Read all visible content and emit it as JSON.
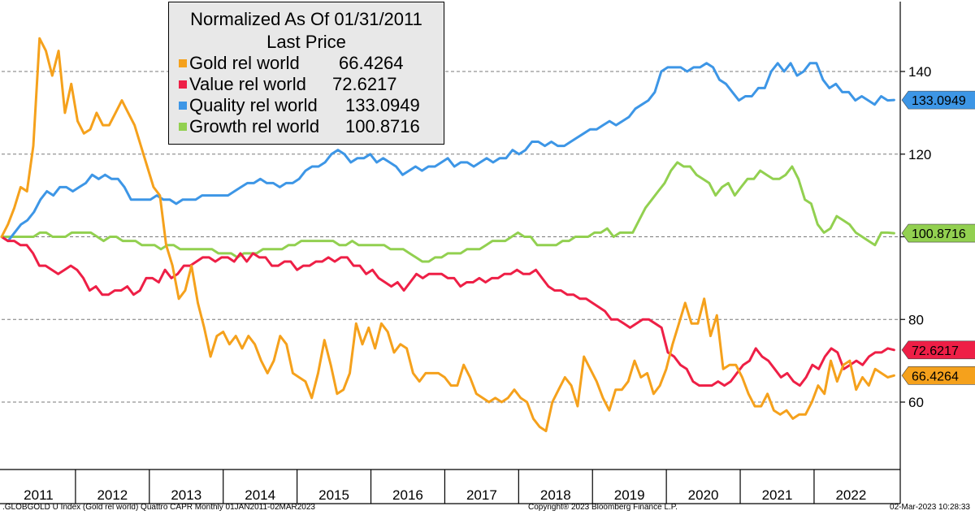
{
  "chart_data": {
    "type": "line",
    "legend": {
      "title_line1": "Normalized As Of 01/31/2011",
      "title_line2": "Last Price",
      "placement": "top-left"
    },
    "y_ticks": [
      60,
      80,
      120,
      140
    ],
    "x_labels": [
      "2011",
      "2012",
      "2013",
      "2014",
      "2015",
      "2016",
      "2017",
      "2018",
      "2019",
      "2020",
      "2021",
      "2022"
    ],
    "x_range": [
      "2011-01",
      "2023-03"
    ],
    "y_range": [
      45,
      158
    ],
    "grid": true,
    "series": [
      {
        "name": "Gold rel world",
        "last_label": "66.4264",
        "color": "#f5a11c",
        "start": "2011-01",
        "values": [
          100,
          103,
          107,
          112,
          111,
          122,
          148,
          145,
          139,
          145,
          130,
          137,
          128,
          125,
          126,
          130,
          127,
          127,
          130,
          133,
          130,
          127,
          122,
          117,
          112,
          110,
          98,
          93,
          85,
          87,
          93,
          84,
          78,
          71,
          76,
          77,
          74,
          76,
          73,
          76,
          74,
          70,
          67,
          70,
          76,
          74,
          67,
          66,
          65,
          61,
          67,
          75,
          69,
          62,
          63,
          67,
          79,
          74,
          78,
          73,
          79,
          77,
          72,
          74,
          73,
          67,
          65,
          67,
          67,
          67,
          66,
          64,
          64,
          69,
          66,
          62,
          61,
          60,
          61,
          60,
          61,
          63,
          61,
          60,
          56,
          54,
          53,
          60,
          63,
          66,
          64,
          59,
          71,
          68,
          65,
          61,
          58,
          63,
          63,
          65,
          70,
          66,
          67,
          62,
          64,
          68,
          74,
          79,
          84,
          79,
          79,
          85,
          76,
          81,
          68,
          69,
          69,
          66,
          62,
          59,
          59,
          62,
          58,
          57,
          58,
          56,
          57,
          57,
          60,
          64,
          62,
          70,
          65,
          69,
          70,
          63,
          66,
          64,
          68,
          67,
          66,
          66.4264
        ]
      },
      {
        "name": "Value rel world",
        "last_label": "72.6217",
        "color": "#ee1f46",
        "start": "2011-01",
        "values": [
          100,
          99,
          99,
          98,
          98,
          96,
          93,
          93,
          92,
          91,
          92,
          93,
          92,
          90,
          87,
          88,
          86,
          86,
          87,
          87,
          88,
          86,
          87,
          90,
          90,
          89,
          92,
          90,
          91,
          93,
          93,
          94,
          95,
          95,
          94,
          95,
          95,
          94,
          96,
          94,
          96,
          95,
          95,
          93,
          93,
          94,
          94,
          92,
          93,
          93,
          94,
          94,
          95,
          94,
          95,
          95,
          93,
          93,
          91,
          92,
          90,
          89,
          88,
          89,
          87,
          89,
          91,
          90,
          91,
          91,
          91,
          90,
          90,
          88,
          89,
          89,
          90,
          89,
          90,
          90,
          91,
          91,
          92,
          91,
          91,
          92,
          90,
          88,
          87,
          87,
          86,
          86,
          85,
          85,
          84,
          83,
          82,
          80,
          80,
          79,
          78,
          79,
          80,
          80,
          79,
          78,
          72,
          71,
          69,
          68,
          65,
          64,
          64,
          64,
          65,
          64,
          65,
          67,
          69,
          70,
          73,
          71,
          70,
          68,
          66,
          67,
          65,
          64,
          66,
          69,
          68,
          71,
          73,
          72,
          68,
          69,
          70,
          69,
          71,
          72,
          72,
          73,
          72.6217
        ]
      },
      {
        "name": "Quality rel world",
        "last_label": "133.0949",
        "color": "#3d96e6",
        "start": "2011-01",
        "values": [
          100,
          99,
          101,
          103,
          104,
          106,
          109,
          111,
          110,
          112,
          112,
          111,
          112,
          113,
          115,
          114,
          115,
          114,
          114,
          112,
          109,
          109,
          109,
          109,
          110,
          109,
          109,
          108,
          109,
          109,
          109,
          110,
          110,
          110,
          110,
          110,
          111,
          112,
          113,
          113,
          114,
          113,
          113,
          112,
          113,
          113,
          114,
          116,
          117,
          117,
          118,
          120,
          121,
          120,
          118,
          119,
          119,
          120,
          118,
          119,
          118,
          117,
          115,
          116,
          117,
          116,
          117,
          117,
          118,
          119,
          117,
          118,
          118,
          117,
          118,
          119,
          118,
          119,
          119,
          121,
          120,
          121,
          123,
          123,
          122,
          123,
          122,
          122,
          123,
          124,
          125,
          126,
          126,
          127,
          128,
          127,
          128,
          129,
          131,
          132,
          133,
          135,
          140,
          141,
          141,
          141,
          140,
          141,
          141,
          142,
          141,
          138,
          137,
          135,
          133,
          134,
          134,
          136,
          136,
          140,
          142,
          140,
          142,
          139,
          140,
          142,
          142,
          138,
          136,
          137,
          135,
          135,
          133,
          134,
          133,
          132,
          134,
          133,
          133.0949
        ]
      },
      {
        "name": "Growth rel world",
        "last_label": "100.8716",
        "color": "#92d050",
        "start": "2011-01",
        "values": [
          100,
          100,
          100,
          100,
          100,
          100,
          101,
          101,
          100,
          100,
          100,
          101,
          101,
          101,
          101,
          100,
          99,
          100,
          100,
          99,
          99,
          99,
          98,
          98,
          98,
          97,
          98,
          98,
          97,
          97,
          97,
          97,
          97,
          97,
          96,
          96,
          96,
          95,
          96,
          96,
          96,
          97,
          97,
          97,
          97,
          98,
          98,
          99,
          99,
          99,
          99,
          99,
          99,
          98,
          98,
          99,
          98,
          98,
          98,
          98,
          98,
          97,
          97,
          97,
          96,
          95,
          94,
          94,
          95,
          95,
          96,
          96,
          96,
          97,
          97,
          97,
          98,
          99,
          99,
          99,
          100,
          101,
          100,
          100,
          98,
          98,
          98,
          98,
          99,
          99,
          100,
          100,
          100,
          101,
          101,
          102,
          100,
          101,
          101,
          101,
          104,
          107,
          109,
          111,
          113,
          116,
          118,
          117,
          117,
          115,
          114,
          113,
          110,
          112,
          113,
          110,
          112,
          114,
          114,
          116,
          115,
          114,
          114,
          115,
          117,
          114,
          109,
          108,
          103,
          101,
          102,
          105,
          104,
          103,
          101,
          100,
          99,
          98,
          101,
          101,
          100.8716
        ]
      }
    ],
    "footer_left": ".GLOBGOLD U Index (Gold rel world) Quattro CAPR  Monthly 01JAN2011-02MAR2023",
    "footer_center": "Copyright® 2023 Bloomberg Finance L.P.",
    "footer_right": "02-Mar-2023 10:28:33"
  }
}
